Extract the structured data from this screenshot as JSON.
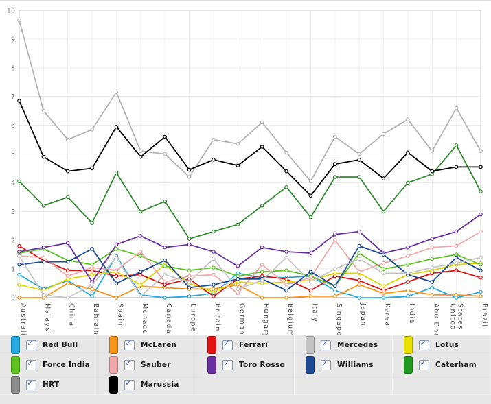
{
  "chart_data": {
    "type": "line",
    "title": "",
    "xlabel": "",
    "ylabel": "",
    "ylim": [
      0,
      10
    ],
    "yticks": [
      0,
      1,
      2,
      3,
      4,
      5,
      6,
      7,
      8,
      9,
      10
    ],
    "grid": true,
    "legend_position": "bottom",
    "x_categories": [
      "Australia",
      "Malaysia",
      "China",
      "Bahrain",
      "Spain",
      "Monaco",
      "Canada",
      "Europe",
      "Britain",
      "Germany",
      "Hungary",
      "Belgium",
      "Italy",
      "Singapore",
      "Japan",
      "Korea",
      "India",
      "Abu Dhabi",
      "United States",
      "Brazil"
    ],
    "series": [
      {
        "name": "Red Bull",
        "color": "#29abe2",
        "swatch": "#29abe2",
        "values": [
          0.8,
          0.3,
          0.6,
          0.05,
          1.45,
          0.1,
          0,
          0.05,
          0.15,
          0.85,
          0.7,
          0.7,
          0.75,
          0.25,
          0,
          0,
          0.05,
          0.35,
          0,
          0.2
        ]
      },
      {
        "name": "McLaren",
        "color": "#f7941e",
        "swatch": "#f7941e",
        "values": [
          0,
          0,
          0.5,
          0.3,
          0,
          0.4,
          0.35,
          0.3,
          0.3,
          0.45,
          0,
          0,
          0.05,
          0.05,
          0.45,
          0.15,
          0.25,
          0.1,
          0.1,
          0.05
        ]
      },
      {
        "name": "Ferrari",
        "color": "#e11212",
        "swatch": "#e11212",
        "values": [
          1.8,
          1.3,
          0.95,
          0.95,
          0.75,
          0.8,
          0.45,
          0.65,
          0.05,
          0.65,
          0.75,
          0.65,
          0.25,
          0.75,
          0.6,
          0.25,
          0.55,
          0.85,
          0.95,
          0.7
        ]
      },
      {
        "name": "Mercedes",
        "color": "#b3b3b3",
        "swatch": "#c2c2c2",
        "values": [
          9.65,
          6.5,
          5.5,
          5.85,
          7.15,
          5.1,
          5.0,
          4.2,
          5.5,
          5.35,
          6.1,
          5.05,
          4.05,
          5.6,
          5.0,
          5.7,
          6.2,
          5.1,
          6.6,
          5.1
        ]
      },
      {
        "name": "Lotus",
        "color": "#ddd600",
        "swatch": "#e8e000",
        "values": [
          0.45,
          0.25,
          0.65,
          0.8,
          0.9,
          0.45,
          1.15,
          0.5,
          0.2,
          0.55,
          0.5,
          0.55,
          0.6,
          0.85,
          0.85,
          0.4,
          0.8,
          0.95,
          1.15,
          1.2
        ]
      },
      {
        "name": "Force India",
        "color": "#5fc323",
        "swatch": "#5fc323",
        "values": [
          1.55,
          1.7,
          1.3,
          1.15,
          1.7,
          1.45,
          1.1,
          0.95,
          1.05,
          0.75,
          0.9,
          0.95,
          0.75,
          0.4,
          1.55,
          1.0,
          1.15,
          1.35,
          1.5,
          1.15
        ]
      },
      {
        "name": "Sauber",
        "color": "#f0a8ab",
        "swatch": "#f0a8ab",
        "values": [
          1.45,
          1.4,
          0.75,
          1.05,
          0.95,
          1.6,
          0.55,
          0.75,
          0.8,
          0.15,
          1.15,
          0.45,
          0.7,
          2.0,
          0.9,
          1.2,
          1.45,
          1.75,
          1.8,
          2.3
        ]
      },
      {
        "name": "Toro Rosso",
        "color": "#6a2fa0",
        "swatch": "#6a2fa0",
        "values": [
          1.6,
          1.75,
          1.9,
          0.55,
          1.85,
          2.15,
          1.75,
          1.85,
          1.6,
          1.1,
          1.75,
          1.6,
          1.55,
          2.2,
          2.3,
          1.55,
          1.75,
          2.05,
          2.3,
          2.9
        ]
      },
      {
        "name": "Williams",
        "color": "#1c4a94",
        "swatch": "#1c4a94",
        "values": [
          1.15,
          1.25,
          1.25,
          1.7,
          0.5,
          0.9,
          1.3,
          0.35,
          0.45,
          0.65,
          0.65,
          0.25,
          0.9,
          0.4,
          1.8,
          1.5,
          0.8,
          0.55,
          1.4,
          0.95
        ]
      },
      {
        "name": "Caterham",
        "color": "#2e8b2e",
        "swatch": "#1f9a1f",
        "values": [
          4.05,
          3.2,
          3.5,
          2.6,
          4.35,
          3.0,
          3.35,
          2.05,
          2.3,
          2.55,
          3.2,
          3.85,
          2.8,
          4.2,
          4.2,
          3.0,
          4.0,
          4.3,
          5.3,
          3.7
        ]
      },
      {
        "name": "HRT",
        "color": "#c6c6c6",
        "swatch": "#8c8c8c",
        "values": [
          1.45,
          0.1,
          0,
          0.45,
          1.4,
          0.05,
          0.8,
          0.55,
          1.35,
          0.3,
          0.6,
          1.4,
          0.55,
          1.0,
          1.35,
          0.85,
          0.85,
          1.05,
          1.2,
          1.4
        ]
      },
      {
        "name": "Marussia",
        "color": "#000000",
        "swatch": "#000000",
        "values": [
          6.85,
          4.9,
          4.4,
          4.5,
          5.95,
          4.9,
          5.6,
          4.45,
          4.8,
          4.6,
          5.25,
          4.4,
          3.55,
          4.65,
          4.8,
          4.15,
          5.05,
          4.4,
          4.55,
          4.55
        ]
      }
    ]
  },
  "legend": {
    "columns": 5,
    "items": [
      {
        "label": "Red Bull",
        "checked": true
      },
      {
        "label": "McLaren",
        "checked": true
      },
      {
        "label": "Ferrari",
        "checked": true
      },
      {
        "label": "Mercedes",
        "checked": true
      },
      {
        "label": "Lotus",
        "checked": true
      },
      {
        "label": "Force India",
        "checked": true
      },
      {
        "label": "Sauber",
        "checked": true
      },
      {
        "label": "Toro Rosso",
        "checked": true
      },
      {
        "label": "Williams",
        "checked": true
      },
      {
        "label": "Caterham",
        "checked": true
      },
      {
        "label": "HRT",
        "checked": true
      },
      {
        "label": "Marussia",
        "checked": true
      }
    ]
  }
}
